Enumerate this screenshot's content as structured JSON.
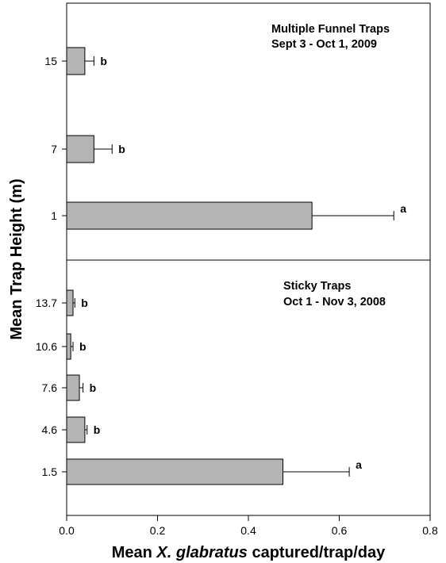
{
  "chart_data": {
    "type": "bar",
    "orientation": "horizontal",
    "xlim": [
      0,
      0.8
    ],
    "x_ticks": [
      "0.0",
      "0.2",
      "0.4",
      "0.6",
      "0.8"
    ],
    "xlabel": {
      "prefix": "Mean ",
      "italic": "X. glabratus",
      "suffix": " captured/trap/day"
    },
    "ylabel": "Mean Trap Height (m)",
    "panels": [
      {
        "title_line1": "Multiple Funnel Traps",
        "title_line2": "Sept 3 - Oct 1, 2009",
        "bars": [
          {
            "category": "15",
            "value": 0.04,
            "error": 0.02,
            "letter": "b"
          },
          {
            "category": "7",
            "value": 0.06,
            "error": 0.04,
            "letter": "b"
          },
          {
            "category": "1",
            "value": 0.54,
            "error": 0.18,
            "letter": "a"
          }
        ]
      },
      {
        "title_line1": "Sticky Traps",
        "title_line2": "Oct 1 - Nov 3, 2008",
        "bars": [
          {
            "category": "13.7",
            "value": 0.014,
            "error": 0.004,
            "letter": "b"
          },
          {
            "category": "10.6",
            "value": 0.009,
            "error": 0.005,
            "letter": "b"
          },
          {
            "category": "7.6",
            "value": 0.028,
            "error": 0.008,
            "letter": "b"
          },
          {
            "category": "4.6",
            "value": 0.04,
            "error": 0.005,
            "letter": "b"
          },
          {
            "category": "1.5",
            "value": 0.476,
            "error": 0.146,
            "letter": "a"
          }
        ]
      }
    ]
  },
  "colors": {
    "bar_fill": "#b4b4b4",
    "bar_stroke": "#000000",
    "axis": "#000000"
  }
}
